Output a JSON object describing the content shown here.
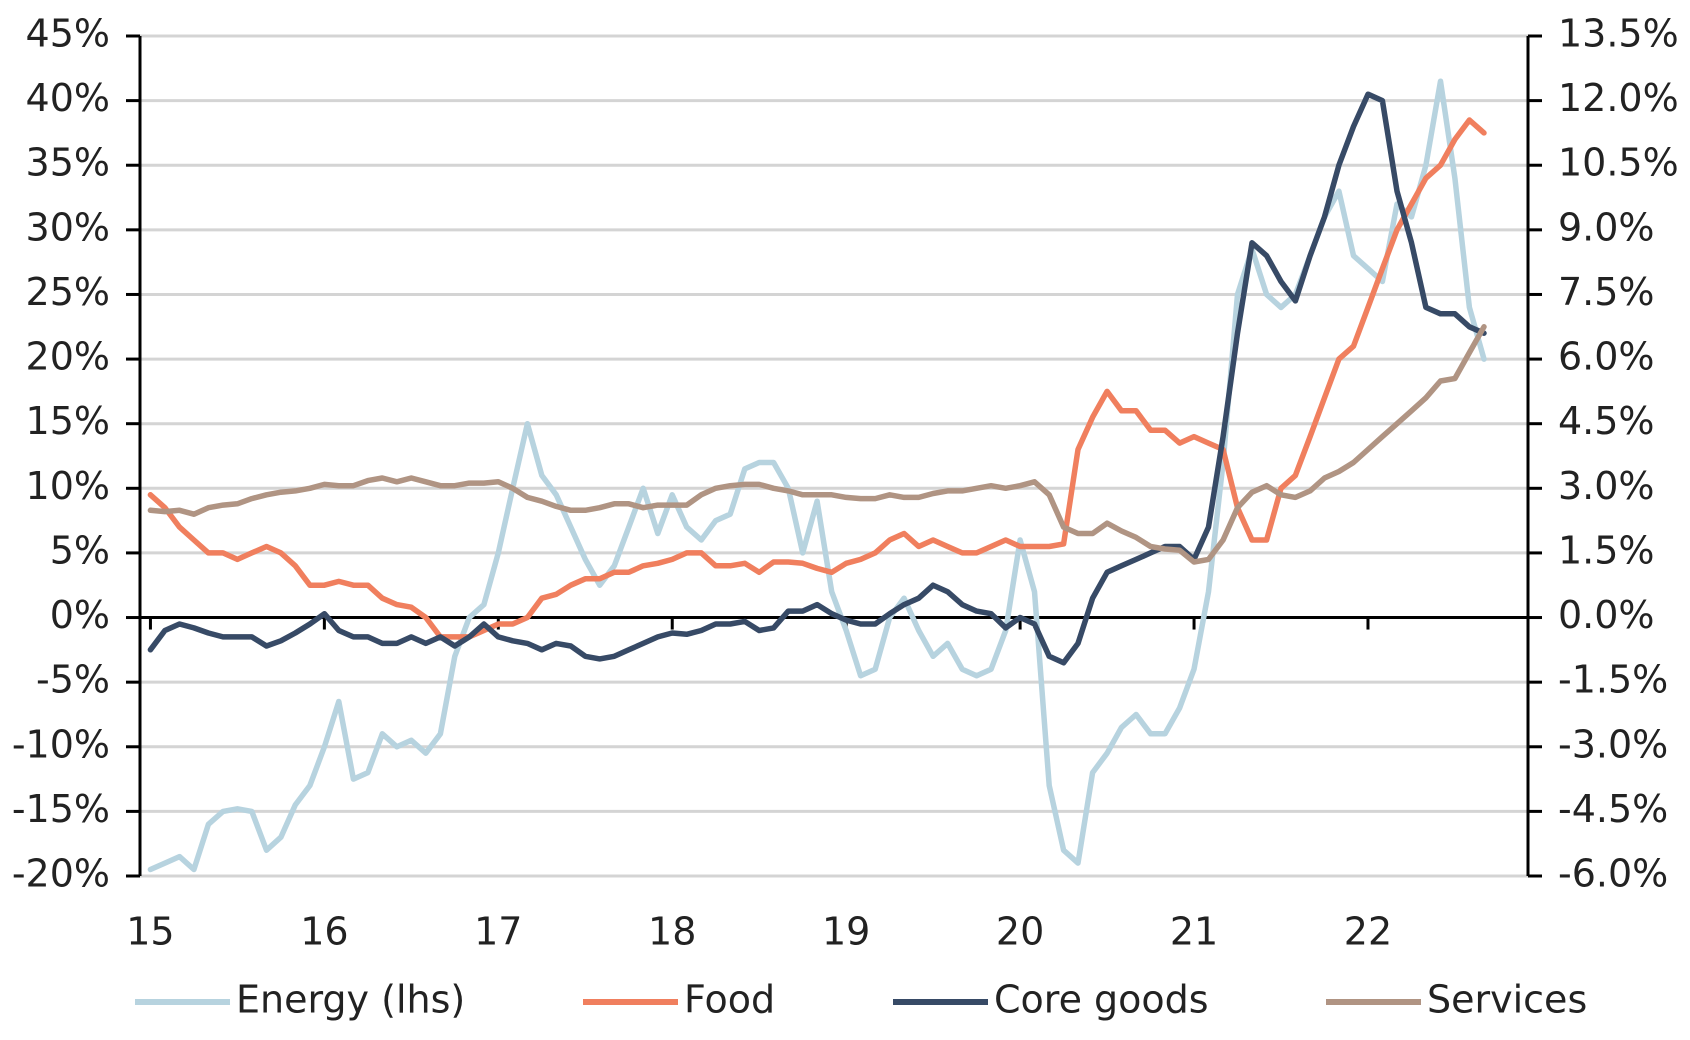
{
  "chart_data": {
    "type": "line",
    "x": [
      15,
      15.083,
      15.167,
      15.25,
      15.333,
      15.417,
      15.5,
      15.583,
      15.667,
      15.75,
      15.833,
      15.917,
      16,
      16.083,
      16.167,
      16.25,
      16.333,
      16.417,
      16.5,
      16.583,
      16.667,
      16.75,
      16.833,
      16.917,
      17,
      17.083,
      17.167,
      17.25,
      17.333,
      17.417,
      17.5,
      17.583,
      17.667,
      17.75,
      17.833,
      17.917,
      18,
      18.083,
      18.167,
      18.25,
      18.333,
      18.417,
      18.5,
      18.583,
      18.667,
      18.75,
      18.833,
      18.917,
      19,
      19.083,
      19.167,
      19.25,
      19.333,
      19.417,
      19.5,
      19.583,
      19.667,
      19.75,
      19.833,
      19.917,
      20,
      20.083,
      20.167,
      20.25,
      20.333,
      20.417,
      20.5,
      20.583,
      20.667,
      20.75,
      20.833,
      20.917,
      21,
      21.083,
      21.167,
      21.25,
      21.333,
      21.417,
      21.5,
      21.583,
      21.667,
      21.75,
      21.833,
      21.917,
      22,
      22.083,
      22.167,
      22.25,
      22.333,
      22.417,
      22.5,
      22.583,
      22.667
    ],
    "series": [
      {
        "name": "Energy (lhs)",
        "color": "#b7d3df",
        "axis": "y",
        "values": [
          -19.5,
          -19,
          -18.5,
          -19.5,
          -16,
          -15,
          -14.8,
          -15,
          -18,
          -17,
          -14.5,
          -13,
          -10,
          -6.5,
          -12.5,
          -12,
          -9,
          -10,
          -9.5,
          -10.5,
          -9,
          -3,
          0,
          1,
          5,
          10,
          15,
          11,
          9.5,
          7,
          4.5,
          2.5,
          4,
          7,
          10,
          6.5,
          9.5,
          7,
          6,
          7.5,
          8,
          11.5,
          12,
          12,
          10,
          5,
          9,
          2,
          -1,
          -4.5,
          -4,
          0,
          1.5,
          -1,
          -3,
          -2,
          -4,
          -4.5,
          -4,
          -1,
          6,
          2,
          -13,
          -18,
          -19,
          -12,
          -10.5,
          -8.5,
          -7.5,
          -9,
          -9,
          -7,
          -4,
          2,
          12,
          25,
          28.5,
          25,
          24,
          25,
          28,
          31,
          33,
          28,
          27,
          26,
          32,
          31,
          35,
          41.5,
          34,
          24,
          20
        ]
      },
      {
        "name": "Food",
        "color": "#f07f5e",
        "axis": "y2",
        "values": [
          2.85,
          2.55,
          2.1,
          1.8,
          1.5,
          1.5,
          1.35,
          1.5,
          1.65,
          1.5,
          1.2,
          0.75,
          0.75,
          0.84,
          0.75,
          0.75,
          0.45,
          0.3,
          0.24,
          0,
          -0.45,
          -0.45,
          -0.45,
          -0.3,
          -0.15,
          -0.15,
          0,
          0.45,
          0.54,
          0.75,
          0.9,
          0.9,
          1.05,
          1.05,
          1.2,
          1.26,
          1.35,
          1.5,
          1.5,
          1.2,
          1.2,
          1.26,
          1.05,
          1.29,
          1.29,
          1.26,
          1.14,
          1.05,
          1.26,
          1.35,
          1.5,
          1.8,
          1.95,
          1.65,
          1.8,
          1.65,
          1.5,
          1.5,
          1.65,
          1.8,
          1.65,
          1.65,
          1.65,
          1.71,
          3.9,
          4.65,
          5.25,
          4.8,
          4.8,
          4.35,
          4.35,
          4.05,
          4.2,
          4.05,
          3.9,
          2.55,
          1.8,
          1.8,
          3.0,
          3.3,
          4.2,
          5.1,
          6.0,
          6.3,
          7.2,
          8.1,
          9.0,
          9.6,
          10.2,
          10.5,
          11.1,
          11.55,
          11.25
        ]
      },
      {
        "name": "Core goods",
        "color": "#374a66",
        "axis": "y2",
        "values": [
          -0.75,
          -0.3,
          -0.15,
          -0.24,
          -0.36,
          -0.45,
          -0.45,
          -0.45,
          -0.66,
          -0.54,
          -0.36,
          -0.15,
          0.09,
          -0.3,
          -0.45,
          -0.45,
          -0.6,
          -0.6,
          -0.45,
          -0.6,
          -0.45,
          -0.66,
          -0.45,
          -0.15,
          -0.45,
          -0.54,
          -0.6,
          -0.75,
          -0.6,
          -0.66,
          -0.9,
          -0.96,
          -0.9,
          -0.75,
          -0.6,
          -0.45,
          -0.36,
          -0.39,
          -0.3,
          -0.15,
          -0.15,
          -0.09,
          -0.3,
          -0.24,
          0.15,
          0.15,
          0.3,
          0.09,
          -0.06,
          -0.15,
          -0.15,
          0.09,
          0.3,
          0.45,
          0.75,
          0.6,
          0.3,
          0.15,
          0.09,
          -0.24,
          0,
          -0.15,
          -0.9,
          -1.05,
          -0.6,
          0.45,
          1.05,
          1.2,
          1.35,
          1.5,
          1.65,
          1.65,
          1.35,
          2.1,
          4.2,
          6.6,
          8.7,
          8.4,
          7.8,
          7.35,
          8.4,
          9.3,
          10.5,
          11.4,
          12.15,
          12.0,
          9.9,
          8.7,
          7.2,
          7.05,
          7.05,
          6.75,
          6.6
        ]
      },
      {
        "name": "Services",
        "color": "#b09483",
        "axis": "y2",
        "values": [
          2.49,
          2.46,
          2.49,
          2.4,
          2.55,
          2.61,
          2.64,
          2.76,
          2.85,
          2.91,
          2.94,
          3.0,
          3.09,
          3.06,
          3.06,
          3.18,
          3.24,
          3.15,
          3.24,
          3.15,
          3.06,
          3.06,
          3.12,
          3.12,
          3.15,
          3.0,
          2.79,
          2.7,
          2.58,
          2.49,
          2.49,
          2.55,
          2.64,
          2.64,
          2.55,
          2.61,
          2.61,
          2.61,
          2.85,
          3.0,
          3.06,
          3.09,
          3.09,
          3.0,
          2.94,
          2.85,
          2.85,
          2.85,
          2.79,
          2.76,
          2.76,
          2.85,
          2.79,
          2.79,
          2.88,
          2.94,
          2.94,
          3.0,
          3.06,
          3.0,
          3.06,
          3.15,
          2.85,
          2.1,
          1.95,
          1.95,
          2.19,
          2.01,
          1.86,
          1.65,
          1.59,
          1.56,
          1.29,
          1.35,
          1.8,
          2.55,
          2.91,
          3.06,
          2.85,
          2.79,
          2.94,
          3.24,
          3.39,
          3.6,
          3.9,
          4.2,
          4.5,
          4.8,
          5.1,
          5.49,
          5.55,
          6.15,
          6.75
        ]
      }
    ],
    "xlim": [
      14.94,
      22.92
    ],
    "xticks": [
      15,
      16,
      17,
      18,
      19,
      20,
      21,
      22
    ],
    "ylim": [
      -20,
      45
    ],
    "yticks": [
      {
        "value": -20,
        "label": "-20%"
      },
      {
        "value": -15,
        "label": "-15%"
      },
      {
        "value": -10,
        "label": "-10%"
      },
      {
        "value": -5,
        "label": "-5%"
      },
      {
        "value": 0,
        "label": "0%"
      },
      {
        "value": 5,
        "label": "5%"
      },
      {
        "value": 10,
        "label": "10%"
      },
      {
        "value": 15,
        "label": "15%"
      },
      {
        "value": 20,
        "label": "20%"
      },
      {
        "value": 25,
        "label": "25%"
      },
      {
        "value": 30,
        "label": "30%"
      },
      {
        "value": 35,
        "label": "35%"
      },
      {
        "value": 40,
        "label": "40%"
      },
      {
        "value": 45,
        "label": "45%"
      }
    ],
    "y2lim": [
      -6,
      13.5
    ],
    "y2ticks": [
      {
        "value": -6,
        "label": "-6.0%"
      },
      {
        "value": -4.5,
        "label": "-4.5%"
      },
      {
        "value": -3,
        "label": "-3.0%"
      },
      {
        "value": -1.5,
        "label": "-1.5%"
      },
      {
        "value": 0,
        "label": "0.0%"
      },
      {
        "value": 1.5,
        "label": "1.5%"
      },
      {
        "value": 3,
        "label": "3.0%"
      },
      {
        "value": 4.5,
        "label": "4.5%"
      },
      {
        "value": 6,
        "label": "6.0%"
      },
      {
        "value": 7.5,
        "label": "7.5%"
      },
      {
        "value": 9,
        "label": "9.0%"
      },
      {
        "value": 10.5,
        "label": "10.5%"
      },
      {
        "value": 12,
        "label": "12.0%"
      },
      {
        "value": 13.5,
        "label": "13.5%"
      }
    ],
    "grid": true,
    "legend": "bottom"
  }
}
